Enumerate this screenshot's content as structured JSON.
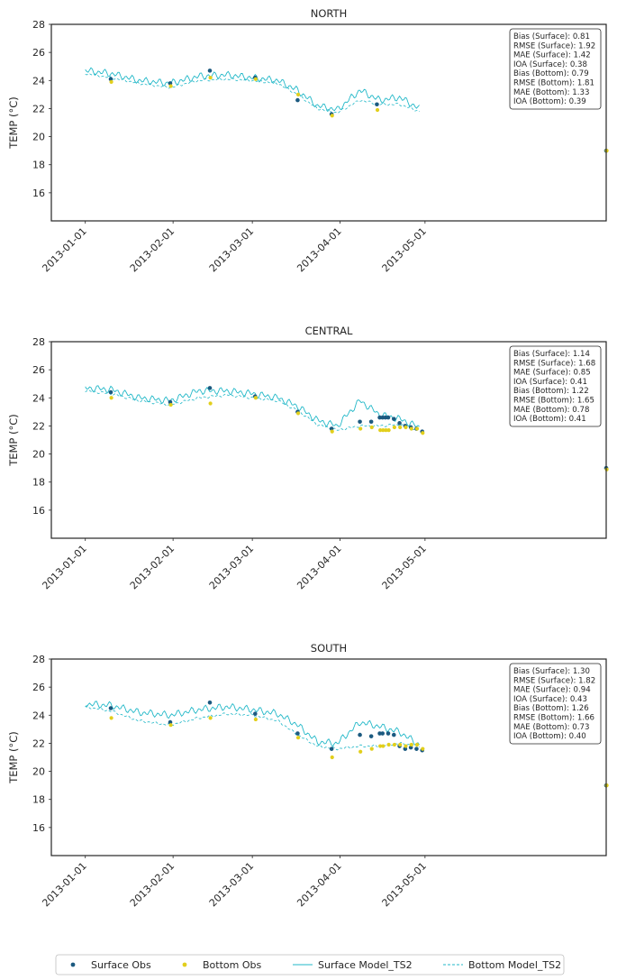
{
  "figure": {
    "ylabel": "TEMP (°C)",
    "y_ticks": [
      16,
      18,
      20,
      22,
      24,
      26,
      28
    ],
    "ylim": [
      14,
      28
    ],
    "x_ticks": [
      "2013-01-01",
      "2013-02-01",
      "2013-03-01",
      "2013-04-01",
      "2013-05-01"
    ],
    "xlim": [
      "2012-12-20",
      "2013-07-04"
    ],
    "colors": {
      "surface_obs": "#1c5a80",
      "bottom_obs": "#e2cf1c",
      "surface_model": "#22b8c8",
      "bottom_model": "#22b8c8"
    }
  },
  "legend": {
    "placement": "bottom-center",
    "entries": [
      {
        "key": "surface_obs",
        "label": "Surface Obs"
      },
      {
        "key": "bottom_obs",
        "label": "Bottom Obs"
      },
      {
        "key": "surface_model",
        "label": "Surface Model_TS2"
      },
      {
        "key": "bottom_model",
        "label": "Bottom Model_TS2"
      }
    ]
  },
  "chart_data": [
    {
      "type": "line",
      "title": "NORTH",
      "stats": [
        "Bias (Surface): 0.81",
        "RMSE (Surface): 1.92",
        "MAE (Surface): 1.42",
        "IOA (Surface): 0.38",
        "Bias (Bottom): 0.79",
        "RMSE (Bottom): 1.81",
        "MAE (Bottom): 1.33",
        "IOA (Bottom): 0.39"
      ],
      "surface_obs": [
        [
          "2013-01-10",
          24.1
        ],
        [
          "2013-01-31",
          23.8
        ],
        [
          "2013-02-14",
          24.7
        ],
        [
          "2013-03-02",
          24.2
        ],
        [
          "2013-03-17",
          22.6
        ],
        [
          "2013-03-29",
          21.6
        ],
        [
          "2013-04-14",
          22.3
        ],
        [
          "2013-07-04",
          19.0
        ]
      ],
      "bottom_obs": [
        [
          "2013-01-10",
          23.9
        ],
        [
          "2013-01-31",
          23.6
        ],
        [
          "2013-02-14",
          24.2
        ],
        [
          "2013-03-02",
          24.1
        ],
        [
          "2013-03-17",
          23.0
        ],
        [
          "2013-03-29",
          21.5
        ],
        [
          "2013-04-14",
          21.9
        ],
        [
          "2013-07-04",
          19.0
        ]
      ],
      "surface_model": [
        [
          "2013-01-01",
          24.7
        ],
        [
          "2013-01-10",
          24.5
        ],
        [
          "2013-01-20",
          24.0
        ],
        [
          "2013-01-31",
          23.8
        ],
        [
          "2013-02-10",
          24.3
        ],
        [
          "2013-02-20",
          24.4
        ],
        [
          "2013-03-01",
          24.2
        ],
        [
          "2013-03-10",
          24.0
        ],
        [
          "2013-03-17",
          23.3
        ],
        [
          "2013-03-24",
          22.2
        ],
        [
          "2013-03-31",
          21.9
        ],
        [
          "2013-04-08",
          23.3
        ],
        [
          "2013-04-15",
          22.6
        ],
        [
          "2013-04-22",
          22.8
        ],
        [
          "2013-04-29",
          22.0
        ]
      ],
      "bottom_model": [
        [
          "2013-01-01",
          24.5
        ],
        [
          "2013-01-10",
          24.2
        ],
        [
          "2013-01-20",
          23.8
        ],
        [
          "2013-01-31",
          23.5
        ],
        [
          "2013-02-10",
          24.0
        ],
        [
          "2013-02-20",
          24.1
        ],
        [
          "2013-03-01",
          24.0
        ],
        [
          "2013-03-10",
          23.8
        ],
        [
          "2013-03-17",
          23.0
        ],
        [
          "2013-03-24",
          22.0
        ],
        [
          "2013-03-31",
          21.7
        ],
        [
          "2013-04-08",
          22.6
        ],
        [
          "2013-04-15",
          22.3
        ],
        [
          "2013-04-22",
          22.3
        ],
        [
          "2013-04-29",
          21.8
        ]
      ]
    },
    {
      "type": "line",
      "title": "CENTRAL",
      "stats": [
        "Bias (Surface): 1.14",
        "RMSE (Surface): 1.68",
        "MAE (Surface): 0.85",
        "IOA (Surface): 0.41",
        "Bias (Bottom): 1.22",
        "RMSE (Bottom): 1.65",
        "MAE (Bottom): 0.78",
        "IOA (Bottom): 0.41"
      ],
      "surface_obs": [
        [
          "2013-01-10",
          24.4
        ],
        [
          "2013-01-31",
          23.7
        ],
        [
          "2013-02-14",
          24.7
        ],
        [
          "2013-03-02",
          24.1
        ],
        [
          "2013-03-17",
          23.0
        ],
        [
          "2013-03-29",
          21.8
        ],
        [
          "2013-04-08",
          22.3
        ],
        [
          "2013-04-12",
          22.3
        ],
        [
          "2013-04-15",
          22.6
        ],
        [
          "2013-04-16",
          22.6
        ],
        [
          "2013-04-17",
          22.6
        ],
        [
          "2013-04-18",
          22.6
        ],
        [
          "2013-04-20",
          22.5
        ],
        [
          "2013-04-22",
          22.2
        ],
        [
          "2013-04-24",
          22.0
        ],
        [
          "2013-04-26",
          21.9
        ],
        [
          "2013-04-28",
          21.8
        ],
        [
          "2013-04-30",
          21.6
        ],
        [
          "2013-07-04",
          19.0
        ]
      ],
      "bottom_obs": [
        [
          "2013-01-10",
          24.0
        ],
        [
          "2013-01-31",
          23.5
        ],
        [
          "2013-02-14",
          23.6
        ],
        [
          "2013-03-02",
          24.0
        ],
        [
          "2013-03-17",
          22.9
        ],
        [
          "2013-03-29",
          21.6
        ],
        [
          "2013-04-08",
          21.8
        ],
        [
          "2013-04-12",
          21.9
        ],
        [
          "2013-04-15",
          21.7
        ],
        [
          "2013-04-16",
          21.7
        ],
        [
          "2013-04-17",
          21.7
        ],
        [
          "2013-04-18",
          21.7
        ],
        [
          "2013-04-20",
          21.9
        ],
        [
          "2013-04-22",
          21.9
        ],
        [
          "2013-04-24",
          21.9
        ],
        [
          "2013-04-26",
          21.8
        ],
        [
          "2013-04-28",
          21.8
        ],
        [
          "2013-04-30",
          21.5
        ],
        [
          "2013-07-04",
          18.9
        ]
      ],
      "surface_model": [
        [
          "2013-01-01",
          24.7
        ],
        [
          "2013-01-10",
          24.6
        ],
        [
          "2013-01-20",
          24.0
        ],
        [
          "2013-01-31",
          23.8
        ],
        [
          "2013-02-10",
          24.5
        ],
        [
          "2013-02-20",
          24.5
        ],
        [
          "2013-03-01",
          24.3
        ],
        [
          "2013-03-10",
          24.0
        ],
        [
          "2013-03-17",
          23.4
        ],
        [
          "2013-03-24",
          22.4
        ],
        [
          "2013-03-31",
          22.0
        ],
        [
          "2013-04-08",
          23.8
        ],
        [
          "2013-04-15",
          22.8
        ],
        [
          "2013-04-22",
          22.5
        ],
        [
          "2013-04-29",
          21.9
        ]
      ],
      "bottom_model": [
        [
          "2013-01-01",
          24.5
        ],
        [
          "2013-01-10",
          24.3
        ],
        [
          "2013-01-20",
          23.8
        ],
        [
          "2013-01-31",
          23.5
        ],
        [
          "2013-02-10",
          24.0
        ],
        [
          "2013-02-20",
          24.2
        ],
        [
          "2013-03-01",
          24.0
        ],
        [
          "2013-03-10",
          23.8
        ],
        [
          "2013-03-17",
          23.1
        ],
        [
          "2013-03-24",
          22.1
        ],
        [
          "2013-03-31",
          21.7
        ],
        [
          "2013-04-08",
          22.0
        ],
        [
          "2013-04-15",
          22.0
        ],
        [
          "2013-04-22",
          22.1
        ],
        [
          "2013-04-29",
          21.7
        ]
      ]
    },
    {
      "type": "line",
      "title": "SOUTH",
      "stats": [
        "Bias (Surface): 1.30",
        "RMSE (Surface): 1.82",
        "MAE (Surface): 0.94",
        "IOA (Surface): 0.43",
        "Bias (Bottom): 1.26",
        "RMSE (Bottom): 1.66",
        "MAE (Bottom): 0.73",
        "IOA (Bottom): 0.40"
      ],
      "surface_obs": [
        [
          "2013-01-10",
          24.5
        ],
        [
          "2013-01-31",
          23.5
        ],
        [
          "2013-02-14",
          24.9
        ],
        [
          "2013-03-02",
          24.1
        ],
        [
          "2013-03-17",
          22.7
        ],
        [
          "2013-03-29",
          21.6
        ],
        [
          "2013-04-08",
          22.6
        ],
        [
          "2013-04-12",
          22.5
        ],
        [
          "2013-04-15",
          22.7
        ],
        [
          "2013-04-16",
          22.7
        ],
        [
          "2013-04-18",
          22.7
        ],
        [
          "2013-04-20",
          22.6
        ],
        [
          "2013-04-22",
          21.8
        ],
        [
          "2013-04-24",
          21.6
        ],
        [
          "2013-04-26",
          21.7
        ],
        [
          "2013-04-28",
          21.6
        ],
        [
          "2013-04-30",
          21.5
        ],
        [
          "2013-07-04",
          19.0
        ]
      ],
      "bottom_obs": [
        [
          "2013-01-10",
          23.8
        ],
        [
          "2013-01-31",
          23.3
        ],
        [
          "2013-02-14",
          23.8
        ],
        [
          "2013-03-02",
          23.7
        ],
        [
          "2013-03-17",
          22.4
        ],
        [
          "2013-03-29",
          21.0
        ],
        [
          "2013-04-08",
          21.4
        ],
        [
          "2013-04-12",
          21.6
        ],
        [
          "2013-04-15",
          21.8
        ],
        [
          "2013-04-16",
          21.8
        ],
        [
          "2013-04-18",
          21.9
        ],
        [
          "2013-04-20",
          21.9
        ],
        [
          "2013-04-22",
          21.9
        ],
        [
          "2013-04-24",
          21.8
        ],
        [
          "2013-04-26",
          21.9
        ],
        [
          "2013-04-28",
          21.9
        ],
        [
          "2013-04-30",
          21.6
        ],
        [
          "2013-07-04",
          19.0
        ]
      ],
      "surface_model": [
        [
          "2013-01-01",
          24.8
        ],
        [
          "2013-01-10",
          24.7
        ],
        [
          "2013-01-20",
          24.2
        ],
        [
          "2013-01-31",
          24.0
        ],
        [
          "2013-02-10",
          24.4
        ],
        [
          "2013-02-20",
          24.6
        ],
        [
          "2013-03-01",
          24.4
        ],
        [
          "2013-03-10",
          24.1
        ],
        [
          "2013-03-17",
          23.3
        ],
        [
          "2013-03-24",
          22.1
        ],
        [
          "2013-03-31",
          22.0
        ],
        [
          "2013-04-08",
          23.5
        ],
        [
          "2013-04-15",
          23.2
        ],
        [
          "2013-04-22",
          22.8
        ],
        [
          "2013-04-29",
          21.9
        ]
      ],
      "bottom_model": [
        [
          "2013-01-01",
          24.6
        ],
        [
          "2013-01-10",
          24.3
        ],
        [
          "2013-01-20",
          23.6
        ],
        [
          "2013-01-31",
          23.3
        ],
        [
          "2013-02-10",
          23.8
        ],
        [
          "2013-02-20",
          24.1
        ],
        [
          "2013-03-01",
          24.0
        ],
        [
          "2013-03-10",
          23.6
        ],
        [
          "2013-03-17",
          22.6
        ],
        [
          "2013-03-24",
          21.8
        ],
        [
          "2013-03-31",
          21.6
        ],
        [
          "2013-04-08",
          21.8
        ],
        [
          "2013-04-15",
          21.8
        ],
        [
          "2013-04-22",
          22.0
        ],
        [
          "2013-04-29",
          21.8
        ]
      ]
    }
  ]
}
